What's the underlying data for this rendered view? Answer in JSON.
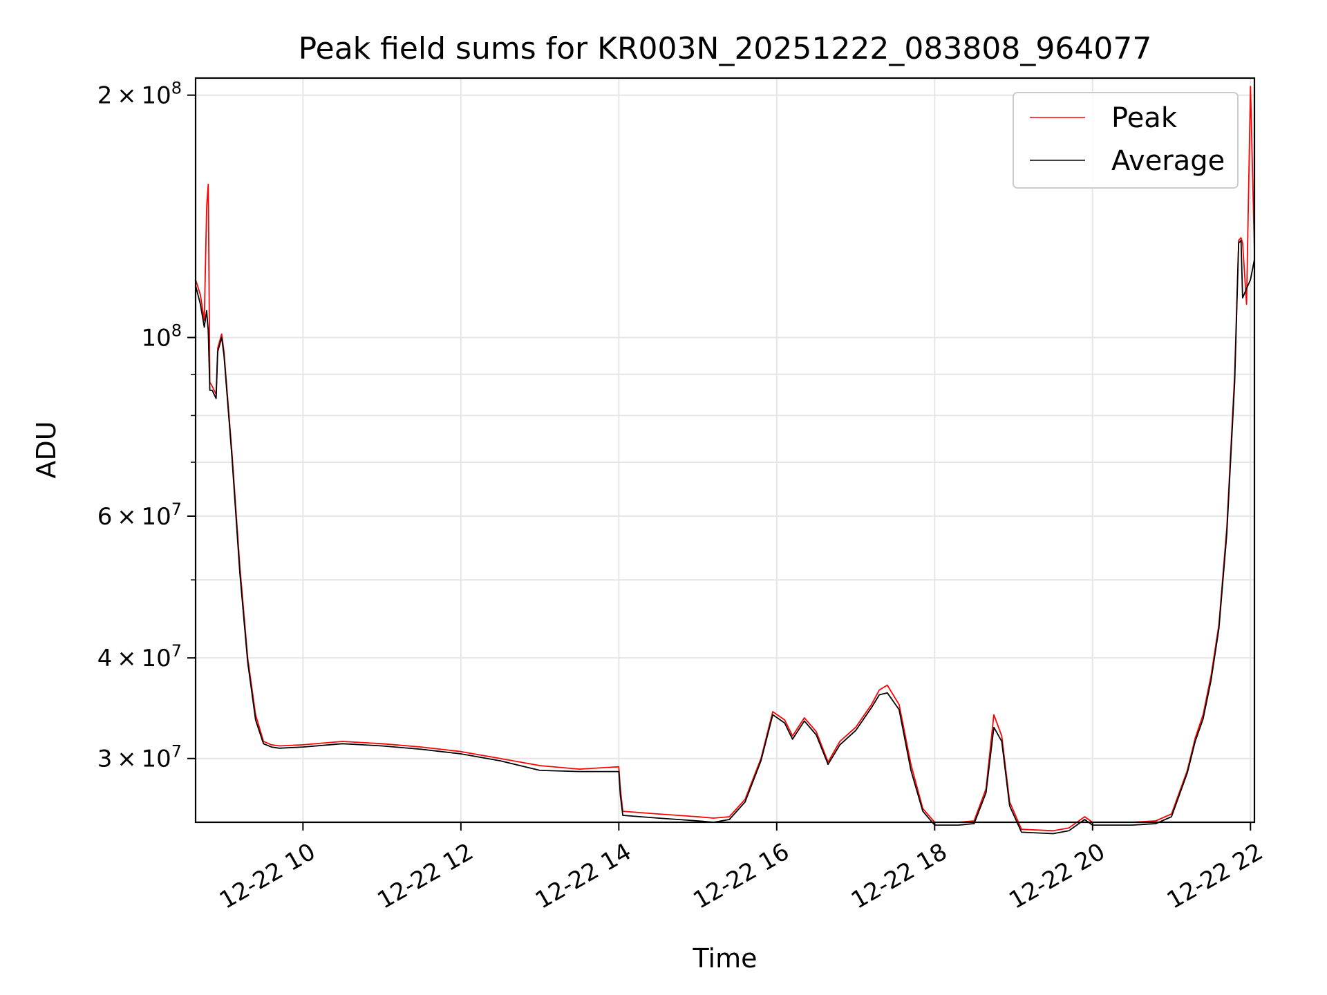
{
  "chart_data": {
    "type": "line",
    "title": "Peak field sums for KR003N_20251222_083808_964077",
    "xlabel": "Time",
    "ylabel": "ADU",
    "y_scale": "log",
    "ylim": [
      25000000,
      210000000
    ],
    "xlim_hours": [
      8.64,
      22.05
    ],
    "grid": true,
    "legend_position": "top-right",
    "x_ticks": [
      {
        "hour": 10,
        "label": "12-22 10"
      },
      {
        "hour": 12,
        "label": "12-22 12"
      },
      {
        "hour": 14,
        "label": "12-22 14"
      },
      {
        "hour": 16,
        "label": "12-22 16"
      },
      {
        "hour": 18,
        "label": "12-22 18"
      },
      {
        "hour": 20,
        "label": "12-22 20"
      },
      {
        "hour": 22,
        "label": "12-22 22"
      }
    ],
    "y_major_ticks": [
      {
        "value": 200000000,
        "mant": "2",
        "exp": "8"
      },
      {
        "value": 100000000,
        "mant": "",
        "exp": "8"
      },
      {
        "value": 60000000,
        "mant": "6",
        "exp": "7"
      },
      {
        "value": 40000000,
        "mant": "4",
        "exp": "7"
      },
      {
        "value": 30000000,
        "mant": "3",
        "exp": "7"
      }
    ],
    "y_minor_ticks": [
      90000000,
      80000000,
      70000000,
      50000000
    ],
    "series": [
      {
        "name": "Peak",
        "color": "#ff0000",
        "x_hours": [
          8.64,
          8.7,
          8.75,
          8.78,
          8.79,
          8.8,
          8.82,
          8.85,
          8.9,
          8.92,
          8.97,
          9.0,
          9.1,
          9.2,
          9.3,
          9.4,
          9.5,
          9.6,
          9.7,
          10.0,
          10.5,
          11.0,
          11.5,
          12.0,
          12.5,
          13.0,
          13.5,
          14.0,
          14.02,
          14.05,
          14.5,
          15.0,
          15.2,
          15.4,
          15.6,
          15.8,
          15.95,
          16.1,
          16.2,
          16.35,
          16.5,
          16.65,
          16.8,
          17.0,
          17.2,
          17.3,
          17.4,
          17.55,
          17.7,
          17.85,
          18.0,
          18.3,
          18.5,
          18.65,
          18.75,
          18.85,
          18.95,
          19.1,
          19.5,
          19.7,
          19.9,
          20.0,
          20.5,
          20.8,
          21.0,
          21.2,
          21.3,
          21.4,
          21.5,
          21.6,
          21.7,
          21.8,
          21.85,
          21.88,
          21.9,
          21.95,
          22.0,
          22.05
        ],
        "values": [
          118000000,
          113000000,
          105000000,
          145000000,
          150000000,
          155000000,
          88000000,
          87000000,
          85000000,
          97000000,
          101000000,
          96000000,
          72000000,
          52000000,
          40000000,
          34000000,
          31500000,
          31200000,
          31100000,
          31200000,
          31500000,
          31300000,
          31000000,
          30600000,
          30000000,
          29400000,
          29100000,
          29300000,
          27500000,
          25800000,
          25600000,
          25400000,
          25300000,
          25400000,
          26700000,
          30000000,
          34300000,
          33500000,
          32000000,
          33700000,
          32400000,
          29700000,
          31500000,
          32800000,
          35000000,
          36500000,
          37000000,
          35000000,
          29500000,
          26000000,
          25000000,
          25000000,
          25100000,
          27500000,
          34000000,
          32000000,
          26500000,
          24500000,
          24400000,
          24600000,
          25400000,
          25000000,
          25000000,
          25100000,
          25600000,
          29000000,
          31800000,
          34000000,
          38000000,
          44000000,
          58000000,
          90000000,
          132000000,
          133000000,
          131000000,
          110000000,
          205000000,
          128000000
        ]
      },
      {
        "name": "Average",
        "color": "#000000",
        "x_hours": [
          8.64,
          8.7,
          8.75,
          8.78,
          8.79,
          8.8,
          8.82,
          8.85,
          8.9,
          8.92,
          8.97,
          9.0,
          9.1,
          9.2,
          9.3,
          9.4,
          9.5,
          9.6,
          9.7,
          10.0,
          10.5,
          11.0,
          11.5,
          12.0,
          12.5,
          13.0,
          13.5,
          14.0,
          14.02,
          14.05,
          14.5,
          15.0,
          15.2,
          15.4,
          15.6,
          15.8,
          15.95,
          16.1,
          16.2,
          16.35,
          16.5,
          16.65,
          16.8,
          17.0,
          17.2,
          17.3,
          17.4,
          17.55,
          17.7,
          17.85,
          18.0,
          18.3,
          18.5,
          18.65,
          18.75,
          18.85,
          18.95,
          19.1,
          19.5,
          19.7,
          19.9,
          20.0,
          20.5,
          20.8,
          21.0,
          21.2,
          21.3,
          21.4,
          21.5,
          21.6,
          21.7,
          21.8,
          21.85,
          21.88,
          21.9,
          21.95,
          22.0,
          22.05
        ],
        "values": [
          116000000,
          110000000,
          103000000,
          108000000,
          105000000,
          102000000,
          86000000,
          86000000,
          84000000,
          96000000,
          100000000,
          95000000,
          71000000,
          51000000,
          39500000,
          33500000,
          31300000,
          31000000,
          30900000,
          31000000,
          31300000,
          31100000,
          30800000,
          30400000,
          29800000,
          29000000,
          28900000,
          28900000,
          27000000,
          25500000,
          25300000,
          25100000,
          25000000,
          25200000,
          26500000,
          29800000,
          34000000,
          33200000,
          31700000,
          33400000,
          32100000,
          29500000,
          31200000,
          32500000,
          34700000,
          36000000,
          36200000,
          34500000,
          29000000,
          25800000,
          24800000,
          24800000,
          24900000,
          27200000,
          32800000,
          31500000,
          26200000,
          24300000,
          24200000,
          24400000,
          25200000,
          24800000,
          24800000,
          24900000,
          25400000,
          28800000,
          31500000,
          33600000,
          37500000,
          43500000,
          57000000,
          88000000,
          131000000,
          132000000,
          112000000,
          115000000,
          118000000,
          125000000
        ]
      }
    ]
  }
}
